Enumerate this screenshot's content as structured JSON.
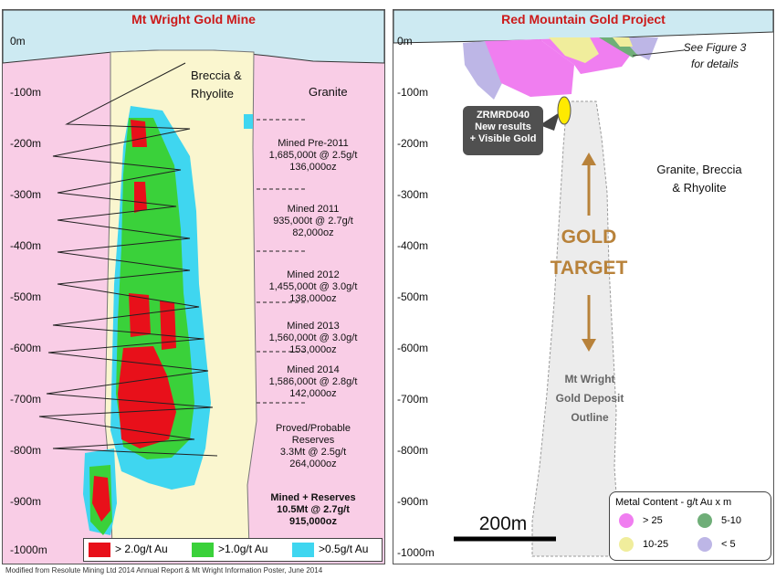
{
  "left": {
    "title": "Mt Wright Gold Mine",
    "depths": [
      "0m",
      "-100m",
      "-200m",
      "-300m",
      "-400m",
      "-500m",
      "-600m",
      "-700m",
      "-800m",
      "-900m",
      "-1000m"
    ],
    "rock_labels": {
      "breccia": "Breccia &\nRhyolite",
      "granite": "Granite"
    },
    "notes": [
      "Mined Pre-2011\n1,685,000t @ 2.5g/t\n136,000oz",
      "Mined 2011\n935,000t @ 2.7g/t\n82,000oz",
      "Mined 2012\n1,455,000t @ 3.0g/t\n138,000oz",
      "Mined 2013\n1,560,000t @ 3.0g/t\n153,000oz",
      "Mined 2014\n1,586,000t @ 2.8g/t\n142,000oz",
      "Proved/Probable\nReserves\n3.3Mt @ 2.5g/t\n264,000oz"
    ],
    "summary": "Mined + Reserves\n10.5Mt @ 2.7g/t\n915,000oz",
    "legend": [
      {
        "label": "> 2.0g/t Au",
        "color": "#e8101a"
      },
      {
        "label": ">1.0g/t Au",
        "color": "#3ad13a"
      },
      {
        "label": ">0.5g/t Au",
        "color": "#3fd6f0"
      }
    ]
  },
  "right": {
    "title": "Red Mountain Gold Project",
    "depths": [
      "0m",
      "-100m",
      "-200m",
      "-300m",
      "-400m",
      "-500m",
      "-600m",
      "-700m",
      "-800m",
      "-900m",
      "-1000m"
    ],
    "figure_note": "See Figure 3\nfor details",
    "callout": "ZRMRD040\nNew results\n+ Visible Gold",
    "rock_label": "Granite, Breccia\n& Rhyolite",
    "target": "GOLD\nTARGET",
    "deposit": "Mt Wright\nGold Deposit\nOutline",
    "scale_label": "200m",
    "legend_title": "Metal Content - g/t Au x m",
    "legend": [
      {
        "label": "> 25",
        "color": "#f07ef0"
      },
      {
        "label": "5-10",
        "color": "#6fae78"
      },
      {
        "label": "10-25",
        "color": "#f0ed9c"
      },
      {
        "label": "< 5",
        "color": "#bdb6e6"
      }
    ]
  },
  "footer": "Modified from Resolute Mining Ltd 2014 Annual Report & Mt Wright Information Poster, June 2014"
}
